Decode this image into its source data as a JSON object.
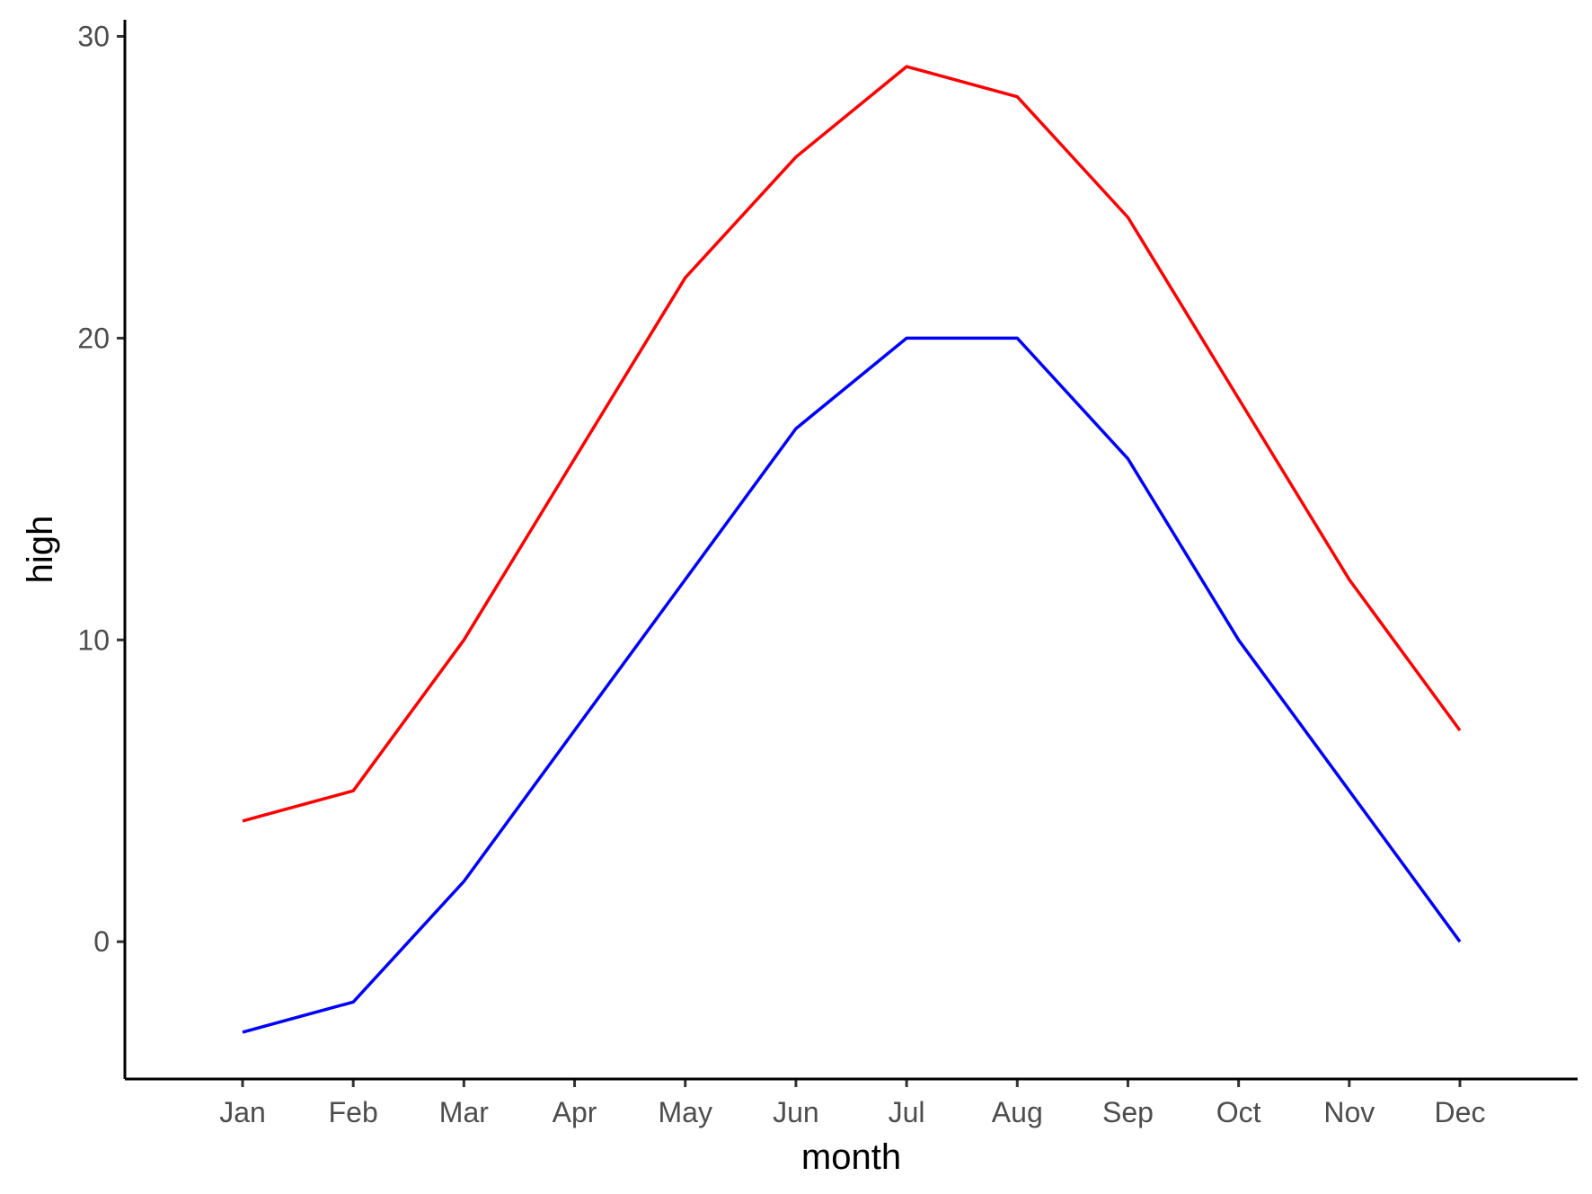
{
  "chart_data": {
    "type": "line",
    "title": "",
    "xlabel": "month",
    "ylabel": "high",
    "categories": [
      "Jan",
      "Feb",
      "Mar",
      "Apr",
      "May",
      "Jun",
      "Jul",
      "Aug",
      "Sep",
      "Oct",
      "Nov",
      "Dec"
    ],
    "series": [
      {
        "color": "#ff0000",
        "values": [
          4,
          5,
          10,
          16,
          22,
          26,
          29,
          28,
          24,
          18,
          12,
          7
        ]
      },
      {
        "color": "#0000ff",
        "values": [
          -3,
          -2,
          2,
          7,
          12,
          17,
          20,
          20,
          16,
          10,
          5,
          0
        ]
      }
    ],
    "ylim": [
      -4.55,
      30.55
    ],
    "yticks": [
      0,
      10,
      20,
      30
    ],
    "grid": false,
    "legend": "none"
  }
}
